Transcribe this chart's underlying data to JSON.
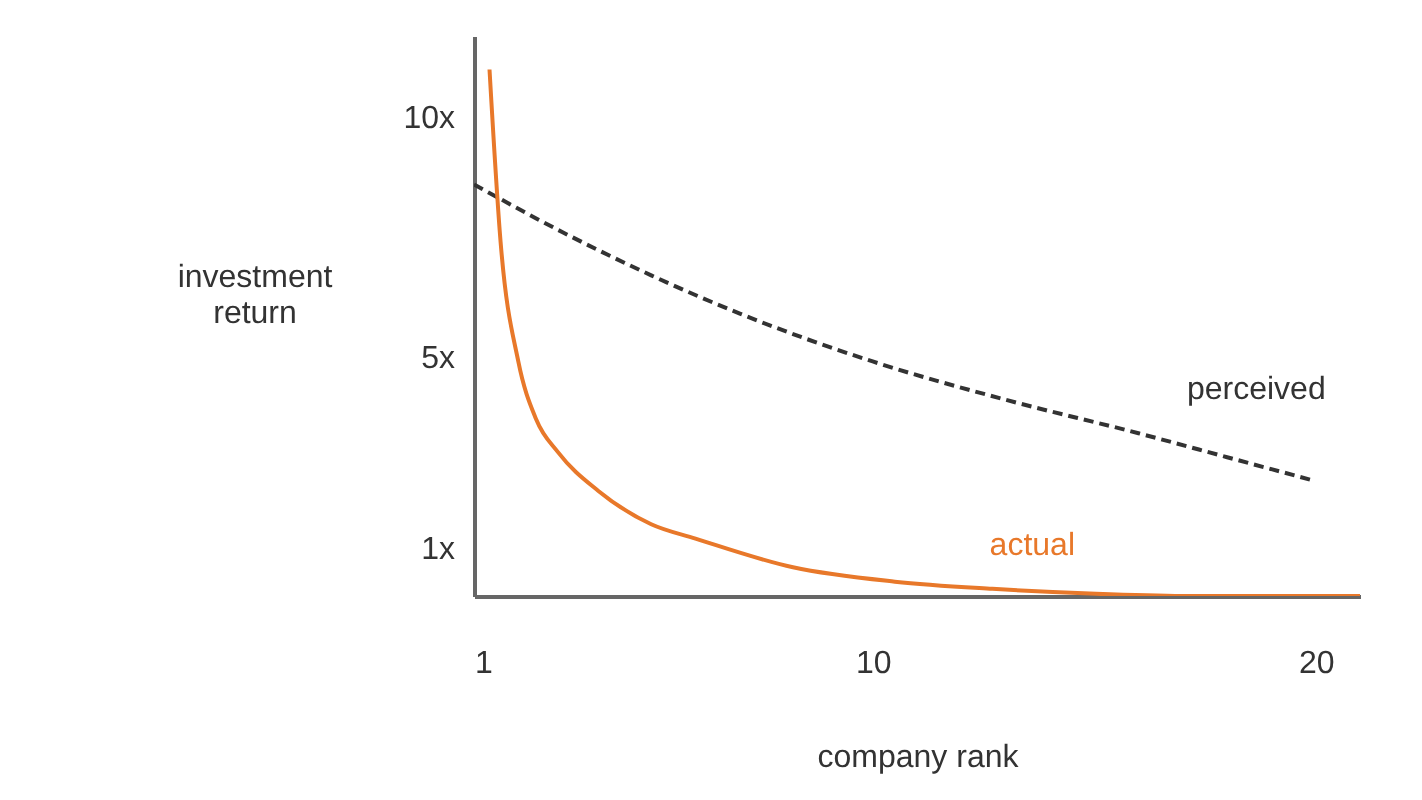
{
  "chart_data": {
    "type": "line",
    "xlabel": "company rank",
    "ylabel": "investment return",
    "xlim": [
      1,
      21
    ],
    "xticks": [
      1,
      10,
      20
    ],
    "ylim": [
      0,
      11.7
    ],
    "yticks": [
      {
        "value": 1,
        "label": "1x"
      },
      {
        "value": 5,
        "label": "5x"
      },
      {
        "value": 10,
        "label": "10x"
      }
    ],
    "marker": "none",
    "series": [
      {
        "name": "perceived",
        "color": "#333333",
        "line_style": "dashed",
        "x": [
          1,
          3,
          5,
          7,
          10,
          13,
          16,
          18,
          20
        ],
        "values": [
          8.6,
          7.6,
          6.7,
          5.9,
          4.9,
          4.1,
          3.4,
          2.9,
          2.4
        ]
      },
      {
        "name": "actual",
        "color": "#e8782a",
        "line_style": "solid",
        "x": [
          1.35,
          1.6,
          2.0,
          2.4,
          2.9,
          3.8,
          5,
          6,
          8.2,
          10.5,
          12.7,
          14.9,
          17,
          21
        ],
        "values": [
          11,
          7.4,
          4.9,
          3.7,
          3.0,
          2.2,
          1.5,
          1.2,
          0.6,
          0.3,
          0.15,
          0.05,
          0,
          0
        ]
      }
    ]
  }
}
